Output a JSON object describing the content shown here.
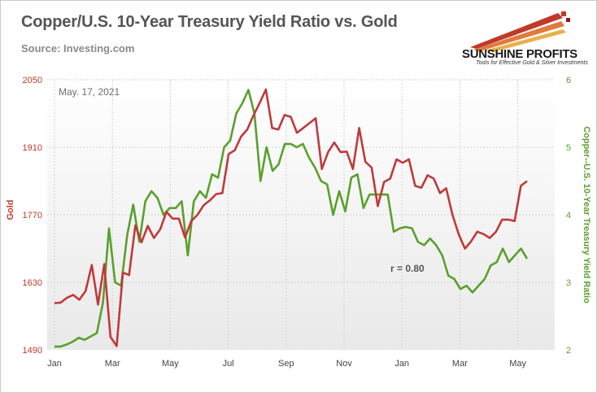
{
  "header": {
    "title": "Copper/U.S. 10-Year Treasury Yield Ratio vs. Gold",
    "subtitle": "Source: Investing.com"
  },
  "logo": {
    "name": "SUNSHINE PROFITS",
    "tagline": "Tools for Effective Gold & Silver Investments"
  },
  "chart_data": {
    "type": "line",
    "date_label": "May. 17, 2021",
    "annotation": "r = 0.80",
    "grid": true,
    "x_ticks": [
      "Jan",
      "Mar",
      "May",
      "Jul",
      "Sep",
      "Nov",
      "Jan",
      "Mar",
      "May"
    ],
    "y_left": {
      "label": "Gold",
      "range": [
        1490,
        2050
      ],
      "ticks": [
        "1490",
        "1630",
        "1770",
        "1910",
        "2050"
      ]
    },
    "y_right": {
      "label": "Copper--U.S. 10-Year Treasury Yield Ratio",
      "range": [
        2,
        6
      ],
      "ticks": [
        "2",
        "3",
        "4",
        "5",
        "6"
      ]
    },
    "colors": {
      "gold": "#c0393b",
      "ratio": "#5aa02c"
    },
    "series": [
      {
        "axis": "left",
        "values": [
          1587,
          1588,
          1598,
          1604,
          1594,
          1612,
          1666,
          1584,
          1668,
          1517,
          1498,
          1650,
          1645,
          1748,
          1713,
          1747,
          1722,
          1740,
          1776,
          1762,
          1762,
          1723,
          1757,
          1770,
          1790,
          1800,
          1813,
          1815,
          1896,
          1904,
          1932,
          1947,
          1976,
          2002,
          2030,
          1950,
          1947,
          1977,
          1973,
          1940,
          1950,
          1960,
          1970,
          1865,
          1900,
          1920,
          1900,
          1901,
          1865,
          1950,
          1880,
          1868,
          1788,
          1838,
          1845,
          1885,
          1878,
          1885,
          1830,
          1826,
          1852,
          1845,
          1815,
          1825,
          1770,
          1730,
          1700,
          1715,
          1735,
          1730,
          1722,
          1735,
          1760,
          1760,
          1757,
          1830,
          1840
        ]
      },
      {
        "axis": "right",
        "values": [
          2.05,
          2.05,
          2.08,
          2.12,
          2.18,
          2.15,
          2.2,
          2.25,
          2.7,
          3.8,
          3.0,
          2.95,
          3.7,
          4.15,
          3.6,
          4.2,
          4.35,
          4.25,
          4.0,
          4.1,
          4.1,
          4.2,
          3.4,
          4.2,
          4.35,
          4.25,
          4.6,
          4.55,
          5.0,
          5.1,
          5.5,
          5.65,
          5.85,
          5.5,
          4.5,
          5.0,
          4.65,
          4.75,
          5.05,
          5.05,
          5.0,
          5.05,
          4.85,
          4.7,
          4.5,
          4.45,
          4.0,
          4.35,
          4.05,
          4.55,
          4.6,
          4.1,
          4.3,
          4.3,
          4.3,
          4.3,
          3.75,
          3.8,
          3.82,
          3.8,
          3.6,
          3.55,
          3.65,
          3.55,
          3.4,
          3.1,
          3.05,
          2.9,
          2.95,
          2.85,
          2.95,
          3.05,
          3.25,
          3.3,
          3.5,
          3.3,
          3.4,
          3.5,
          3.35
        ]
      }
    ]
  }
}
